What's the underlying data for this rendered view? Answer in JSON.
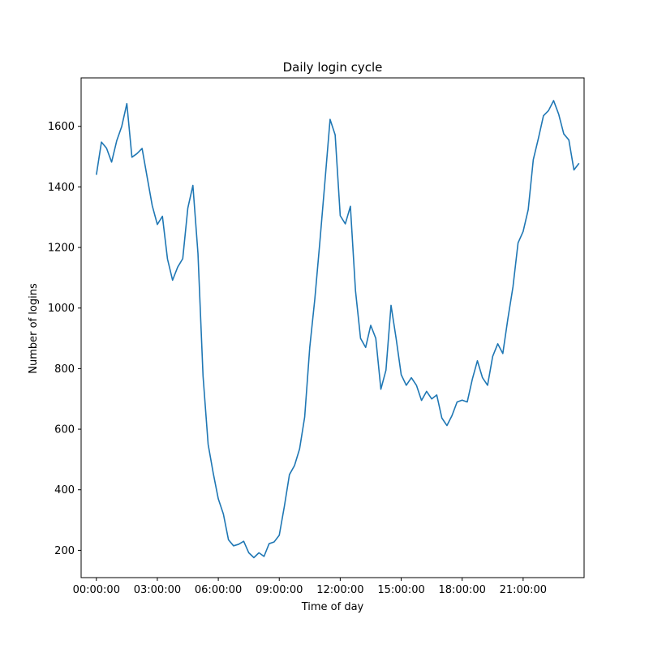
{
  "chart_data": {
    "type": "line",
    "title": "Daily login cycle",
    "xlabel": "Time of day",
    "ylabel": "Number of logins",
    "grid": false,
    "legend": "none",
    "line_color": "#1f77b4",
    "xlim": [
      "-00:45:00",
      "24:00:00"
    ],
    "ylim": [
      110,
      1760
    ],
    "x_ticks": [
      "00:00:00",
      "03:00:00",
      "06:00:00",
      "09:00:00",
      "12:00:00",
      "15:00:00",
      "18:00:00",
      "21:00:00"
    ],
    "y_ticks": [
      200,
      400,
      600,
      800,
      1000,
      1200,
      1400,
      1600
    ],
    "x": [
      "00:00:00",
      "00:15:00",
      "00:30:00",
      "00:45:00",
      "01:00:00",
      "01:15:00",
      "01:30:00",
      "01:45:00",
      "02:00:00",
      "02:15:00",
      "02:30:00",
      "02:45:00",
      "03:00:00",
      "03:15:00",
      "03:30:00",
      "03:45:00",
      "04:00:00",
      "04:15:00",
      "04:30:00",
      "04:45:00",
      "05:00:00",
      "05:15:00",
      "05:30:00",
      "05:45:00",
      "06:00:00",
      "06:15:00",
      "06:30:00",
      "06:45:00",
      "07:00:00",
      "07:15:00",
      "07:30:00",
      "07:45:00",
      "08:00:00",
      "08:15:00",
      "08:30:00",
      "08:45:00",
      "09:00:00",
      "09:15:00",
      "09:30:00",
      "09:45:00",
      "10:00:00",
      "10:15:00",
      "10:30:00",
      "10:45:00",
      "11:00:00",
      "11:15:00",
      "11:30:00",
      "11:45:00",
      "12:00:00",
      "12:15:00",
      "12:30:00",
      "12:45:00",
      "13:00:00",
      "13:15:00",
      "13:30:00",
      "13:45:00",
      "14:00:00",
      "14:15:00",
      "14:30:00",
      "14:45:00",
      "15:00:00",
      "15:15:00",
      "15:30:00",
      "15:45:00",
      "16:00:00",
      "16:15:00",
      "16:30:00",
      "16:45:00",
      "17:00:00",
      "17:15:00",
      "17:30:00",
      "17:45:00",
      "18:00:00",
      "18:15:00",
      "18:30:00",
      "18:45:00",
      "19:00:00",
      "19:15:00",
      "19:30:00",
      "19:45:00",
      "20:00:00",
      "20:15:00",
      "20:30:00",
      "20:45:00",
      "21:00:00",
      "21:15:00",
      "21:30:00",
      "21:45:00",
      "22:00:00",
      "22:15:00",
      "22:30:00",
      "22:45:00",
      "23:00:00",
      "23:15:00",
      "23:30:00",
      "23:45:00"
    ],
    "series": [
      {
        "values": [
          1440,
          1548,
          1528,
          1482,
          1552,
          1600,
          1675,
          1498,
          1510,
          1527,
          1432,
          1338,
          1276,
          1303,
          1162,
          1092,
          1135,
          1163,
          1330,
          1405,
          1180,
          775,
          550,
          455,
          370,
          320,
          235,
          215,
          220,
          230,
          192,
          176,
          192,
          180,
          222,
          228,
          250,
          345,
          450,
          480,
          535,
          640,
          870,
          1030,
          1220,
          1420,
          1623,
          1572,
          1305,
          1278,
          1336,
          1058,
          900,
          870,
          943,
          900,
          732,
          795,
          1009,
          900,
          780,
          745,
          770,
          745,
          695,
          725,
          700,
          713,
          637,
          612,
          645,
          690,
          696,
          690,
          765,
          826,
          770,
          745,
          840,
          882,
          850,
          965,
          1070,
          1215,
          1253,
          1325,
          1490,
          1560,
          1635,
          1652,
          1685,
          1640,
          1575,
          1555,
          1456,
          1478
        ]
      }
    ]
  }
}
